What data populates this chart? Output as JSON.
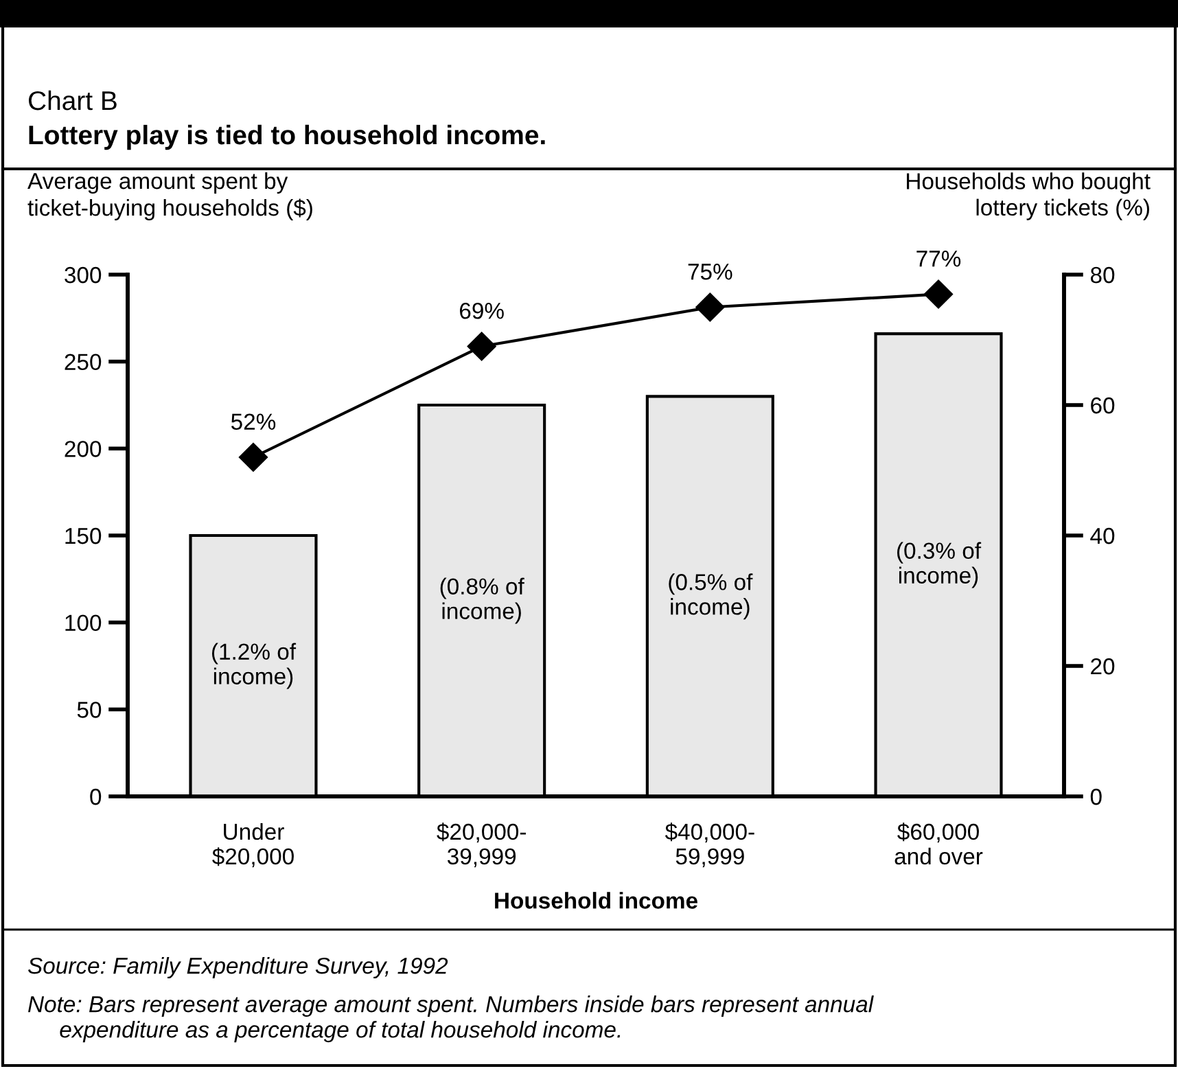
{
  "chart_data": {
    "type": "bar",
    "title": "Chart B",
    "subtitle": "Lottery play is tied to household income.",
    "xlabel": "Household income",
    "ylabel": "Average amount spent by\nticket-buying households ($)",
    "y2label": "Households who bought\nlottery tickets (%)",
    "categories": [
      "Under\n$20,000",
      "$20,000-\n39,999",
      "$40,000-\n59,999",
      "$60,000\nand over"
    ],
    "series": [
      {
        "color": "#e8e8e8",
        "values": [
          150,
          225,
          230,
          266
        ]
      },
      {
        "type": "line",
        "axis": "y2",
        "color": "#000000",
        "marker": "diamond",
        "values": [
          52,
          69,
          75,
          77
        ],
        "value_labels": [
          "52%",
          "69%",
          "75%",
          "77%"
        ]
      }
    ],
    "ylim": [
      0,
      300
    ],
    "yticks": [
      0,
      50,
      100,
      150,
      200,
      250,
      300
    ],
    "y2lim": [
      0,
      80
    ],
    "y2ticks": [
      0,
      20,
      40,
      60,
      80
    ],
    "grid": false,
    "legend": false,
    "annotations": [
      "(1.2% of\nincome)",
      "(0.8% of\nincome)",
      "(0.5% of\nincome)",
      "(0.3% of\nincome)",
      "Source: Family Expenditure Survey, 1992",
      "Note: Bars represent average amount spent. Numbers inside bars represent annual\n     expenditure as a percentage of total household income."
    ]
  }
}
